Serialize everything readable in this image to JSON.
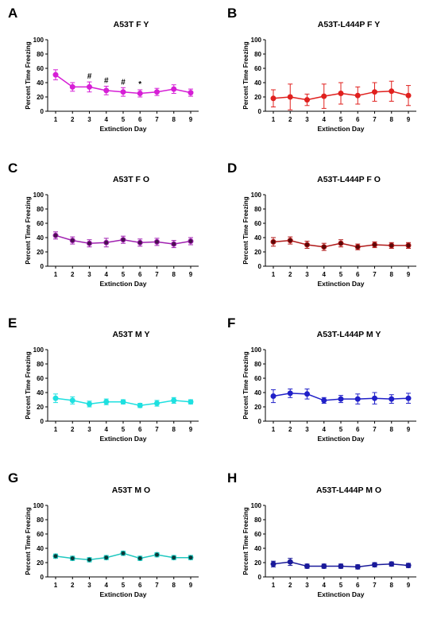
{
  "chart_data": [
    {
      "panel_label": "A",
      "type": "line",
      "title": "A53T F Y",
      "xlabel": "Extinction Day",
      "ylabel": "Percent Time Freezing",
      "x": [
        1,
        2,
        3,
        4,
        5,
        6,
        7,
        8,
        9
      ],
      "ylim": [
        0,
        100
      ],
      "yticks": [
        0,
        20,
        40,
        60,
        80,
        100
      ],
      "color": "#d61fd6",
      "marker_fill": "#d61fd6",
      "series": [
        {
          "values": [
            51,
            34,
            34,
            29,
            27,
            25,
            27,
            31,
            26
          ],
          "error": [
            7,
            6,
            7,
            6,
            6,
            5,
            5,
            6,
            5
          ]
        }
      ],
      "annotations": [
        {
          "x": 3,
          "text": "#"
        },
        {
          "x": 4,
          "text": "#"
        },
        {
          "x": 5,
          "text": "#"
        },
        {
          "x": 6,
          "text": "*"
        }
      ]
    },
    {
      "panel_label": "B",
      "type": "line",
      "title": "A53T-L444P F Y",
      "xlabel": "Extinction Day",
      "ylabel": "Percent Time Freezing",
      "x": [
        1,
        2,
        3,
        4,
        5,
        6,
        7,
        8,
        9
      ],
      "ylim": [
        0,
        100
      ],
      "yticks": [
        0,
        20,
        40,
        60,
        80,
        100
      ],
      "color": "#e0201e",
      "marker_fill": "#e0201e",
      "series": [
        {
          "values": [
            18,
            20,
            16,
            21,
            25,
            22,
            27,
            28,
            22
          ],
          "error": [
            12,
            18,
            8,
            17,
            15,
            12,
            13,
            14,
            14
          ]
        }
      ],
      "annotations": []
    },
    {
      "panel_label": "C",
      "type": "line",
      "title": "A53T F O",
      "xlabel": "Extinction Day",
      "ylabel": "Percent Time Freezing",
      "x": [
        1,
        2,
        3,
        4,
        5,
        6,
        7,
        8,
        9
      ],
      "ylim": [
        0,
        100
      ],
      "yticks": [
        0,
        20,
        40,
        60,
        80,
        100
      ],
      "color": "#a020b0",
      "marker_fill": "#4a1050",
      "series": [
        {
          "values": [
            43,
            36,
            32,
            33,
            37,
            33,
            34,
            31,
            35
          ],
          "error": [
            5,
            5,
            5,
            6,
            5,
            5,
            5,
            5,
            5
          ]
        }
      ],
      "annotations": []
    },
    {
      "panel_label": "D",
      "type": "line",
      "title": "A53T-L444P F O",
      "xlabel": "Extinction Day",
      "ylabel": "Percent Time Freezing",
      "x": [
        1,
        2,
        3,
        4,
        5,
        6,
        7,
        8,
        9
      ],
      "ylim": [
        0,
        100
      ],
      "yticks": [
        0,
        20,
        40,
        60,
        80,
        100
      ],
      "color": "#b01818",
      "marker_fill": "#5a0808",
      "series": [
        {
          "values": [
            34,
            36,
            30,
            27,
            32,
            27,
            30,
            29,
            29
          ],
          "error": [
            6,
            5,
            5,
            5,
            5,
            4,
            4,
            4,
            4
          ]
        }
      ],
      "annotations": []
    },
    {
      "panel_label": "E",
      "type": "line",
      "title": "A53T M Y",
      "xlabel": "Extinction Day",
      "ylabel": "Percent Time Freezing",
      "x": [
        1,
        2,
        3,
        4,
        5,
        6,
        7,
        8,
        9
      ],
      "ylim": [
        0,
        100
      ],
      "yticks": [
        0,
        20,
        40,
        60,
        80,
        100
      ],
      "color": "#1ee0e0",
      "marker_fill": "#1ee0e0",
      "series": [
        {
          "values": [
            32,
            29,
            24,
            27,
            27,
            22,
            25,
            29,
            27
          ],
          "error": [
            6,
            5,
            4,
            4,
            3,
            3,
            4,
            4,
            3
          ]
        }
      ],
      "annotations": []
    },
    {
      "panel_label": "F",
      "type": "line",
      "title": "A53T-L444P M Y",
      "xlabel": "Extinction Day",
      "ylabel": "Percent Time Freezing",
      "x": [
        1,
        2,
        3,
        4,
        5,
        6,
        7,
        8,
        9
      ],
      "ylim": [
        0,
        100
      ],
      "yticks": [
        0,
        20,
        40,
        60,
        80,
        100
      ],
      "color": "#2020c8",
      "marker_fill": "#2020c8",
      "series": [
        {
          "values": [
            35,
            39,
            38,
            29,
            31,
            31,
            32,
            31,
            32
          ],
          "error": [
            9,
            6,
            7,
            4,
            5,
            7,
            8,
            6,
            7
          ]
        }
      ],
      "annotations": []
    },
    {
      "panel_label": "G",
      "type": "line",
      "title": "A53T M O",
      "xlabel": "Extinction Day",
      "ylabel": "Percent Time Freezing",
      "x": [
        1,
        2,
        3,
        4,
        5,
        6,
        7,
        8,
        9
      ],
      "ylim": [
        0,
        100
      ],
      "yticks": [
        0,
        20,
        40,
        60,
        80,
        100
      ],
      "color": "#20c8c0",
      "marker_fill": "#0a3a3a",
      "series": [
        {
          "values": [
            29,
            26,
            24,
            27,
            33,
            26,
            31,
            27,
            27
          ],
          "error": [
            3,
            3,
            3,
            3,
            3,
            3,
            3,
            3,
            3
          ]
        }
      ],
      "annotations": []
    },
    {
      "panel_label": "H",
      "type": "line",
      "title": "A53T-L444P M O",
      "xlabel": "Extinction Day",
      "ylabel": "Percent Time Freezing",
      "x": [
        1,
        2,
        3,
        4,
        5,
        6,
        7,
        8,
        9
      ],
      "ylim": [
        0,
        100
      ],
      "yticks": [
        0,
        20,
        40,
        60,
        80,
        100
      ],
      "color": "#1a1a9a",
      "marker_fill": "#1a1a9a",
      "series": [
        {
          "values": [
            18,
            21,
            15,
            15,
            15,
            14,
            17,
            18,
            16
          ],
          "error": [
            4,
            5,
            3,
            3,
            3,
            3,
            3,
            3,
            3
          ]
        }
      ],
      "annotations": []
    }
  ]
}
